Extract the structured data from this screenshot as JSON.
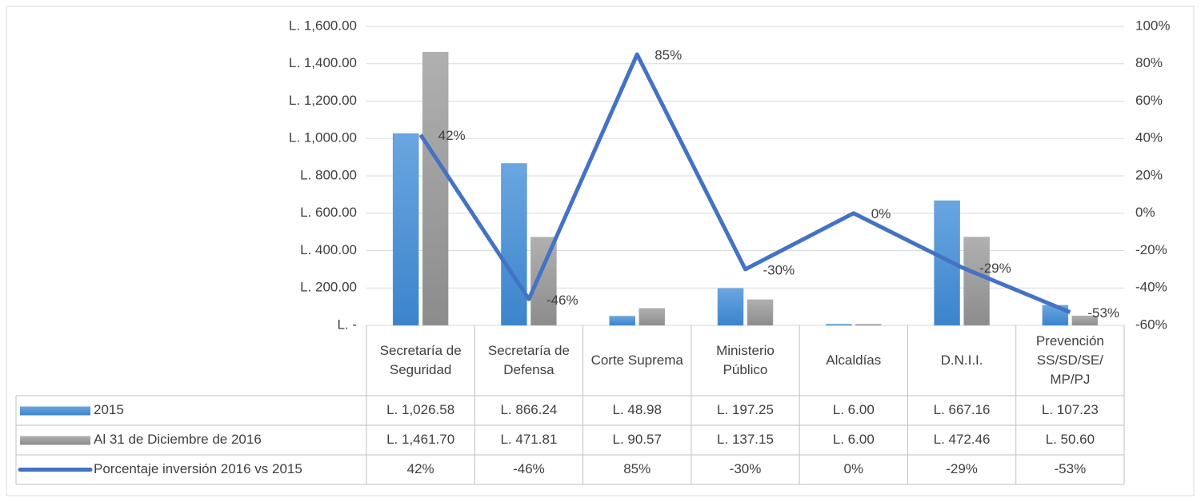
{
  "chart_data": {
    "type": "bar_line",
    "categories": [
      "Secretaría de Seguridad",
      "Secretaría de Defensa",
      "Corte Suprema",
      "Ministerio Público",
      "Alcaldías",
      "D.N.I.I.",
      "Prevención SS/SD/SE/ MP/PJ"
    ],
    "series": [
      {
        "name": "2015",
        "type": "bar",
        "color": "#5b9bd5",
        "values": [
          1026.58,
          866.24,
          48.98,
          197.25,
          6.0,
          667.16,
          107.23
        ],
        "value_labels": [
          "L. 1,026.58",
          "L. 866.24",
          "L. 48.98",
          "L. 197.25",
          "L. 6.00",
          "L. 667.16",
          "L. 107.23"
        ]
      },
      {
        "name": "Al 31 de Diciembre de 2016",
        "type": "bar",
        "color": "#a5a5a5",
        "values": [
          1461.7,
          471.81,
          90.57,
          137.15,
          6.0,
          472.46,
          50.6
        ],
        "value_labels": [
          "L. 1,461.70",
          "L. 471.81",
          "L. 90.57",
          "L. 137.15",
          "L. 6.00",
          "L. 472.46",
          "L. 50.60"
        ]
      },
      {
        "name": "Porcentaje inversión 2016 vs 2015",
        "type": "line",
        "axis": "y2",
        "color": "#4472c4",
        "values": [
          42,
          -46,
          85,
          -30,
          0,
          -29,
          -53
        ],
        "value_labels": [
          "42%",
          "-46%",
          "85%",
          "-30%",
          "0%",
          "-29%",
          "-53%"
        ]
      }
    ],
    "ylim": [
      0,
      1600
    ],
    "yticks": [
      {
        "value": 0,
        "label": "L. -"
      },
      {
        "value": 200,
        "label": "L. 200.00"
      },
      {
        "value": 400,
        "label": "L. 400.00"
      },
      {
        "value": 600,
        "label": "L. 600.00"
      },
      {
        "value": 800,
        "label": "L. 800.00"
      },
      {
        "value": 1000,
        "label": "L. 1,000.00"
      },
      {
        "value": 1200,
        "label": "L. 1,200.00"
      },
      {
        "value": 1400,
        "label": "L. 1,400.00"
      },
      {
        "value": 1600,
        "label": "L. 1,600.00"
      }
    ],
    "y2lim": [
      -60,
      100
    ],
    "y2ticks": [
      {
        "value": -60,
        "label": "-60%"
      },
      {
        "value": -40,
        "label": "-40%"
      },
      {
        "value": -20,
        "label": "-20%"
      },
      {
        "value": 0,
        "label": "0%"
      },
      {
        "value": 20,
        "label": "20%"
      },
      {
        "value": 40,
        "label": "40%"
      },
      {
        "value": 60,
        "label": "60%"
      },
      {
        "value": 80,
        "label": "80%"
      },
      {
        "value": 100,
        "label": "100%"
      }
    ],
    "grid": true,
    "data_table": true
  }
}
